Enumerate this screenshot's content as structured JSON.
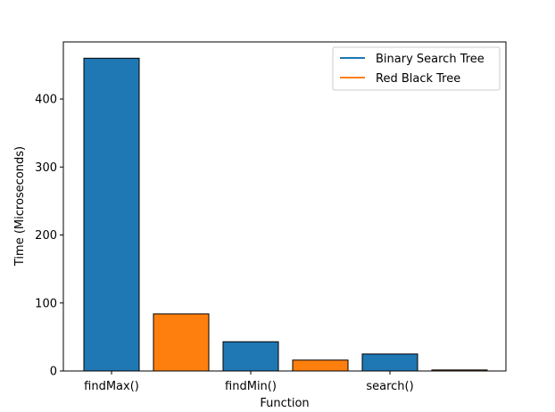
{
  "chart_data": {
    "type": "bar",
    "categories": [
      "findMax()",
      "",
      "findMin()",
      "",
      "search()",
      ""
    ],
    "tick_labels": [
      "findMax()",
      "findMin()",
      "search()"
    ],
    "bars": [
      {
        "category": "findMax()",
        "series": "Binary Search Tree",
        "value": 460
      },
      {
        "category": "findMax()",
        "series": "Red Black Tree",
        "value": 84
      },
      {
        "category": "findMin()",
        "series": "Binary Search Tree",
        "value": 43
      },
      {
        "category": "findMin()",
        "series": "Red Black Tree",
        "value": 16
      },
      {
        "category": "search()",
        "series": "Binary Search Tree",
        "value": 25
      },
      {
        "category": "search()",
        "series": "Red Black Tree",
        "value": 1.5
      }
    ],
    "series": [
      {
        "name": "Binary Search Tree",
        "color": "#1f77b4"
      },
      {
        "name": "Red Black Tree",
        "color": "#ff7f0e"
      }
    ],
    "title": "",
    "xlabel": "Function",
    "ylabel": "Time (Microseconds)",
    "ylim": [
      0,
      484
    ],
    "yticks": [
      0,
      100,
      200,
      300,
      400
    ],
    "grid": false,
    "legend_position": "top-right"
  }
}
